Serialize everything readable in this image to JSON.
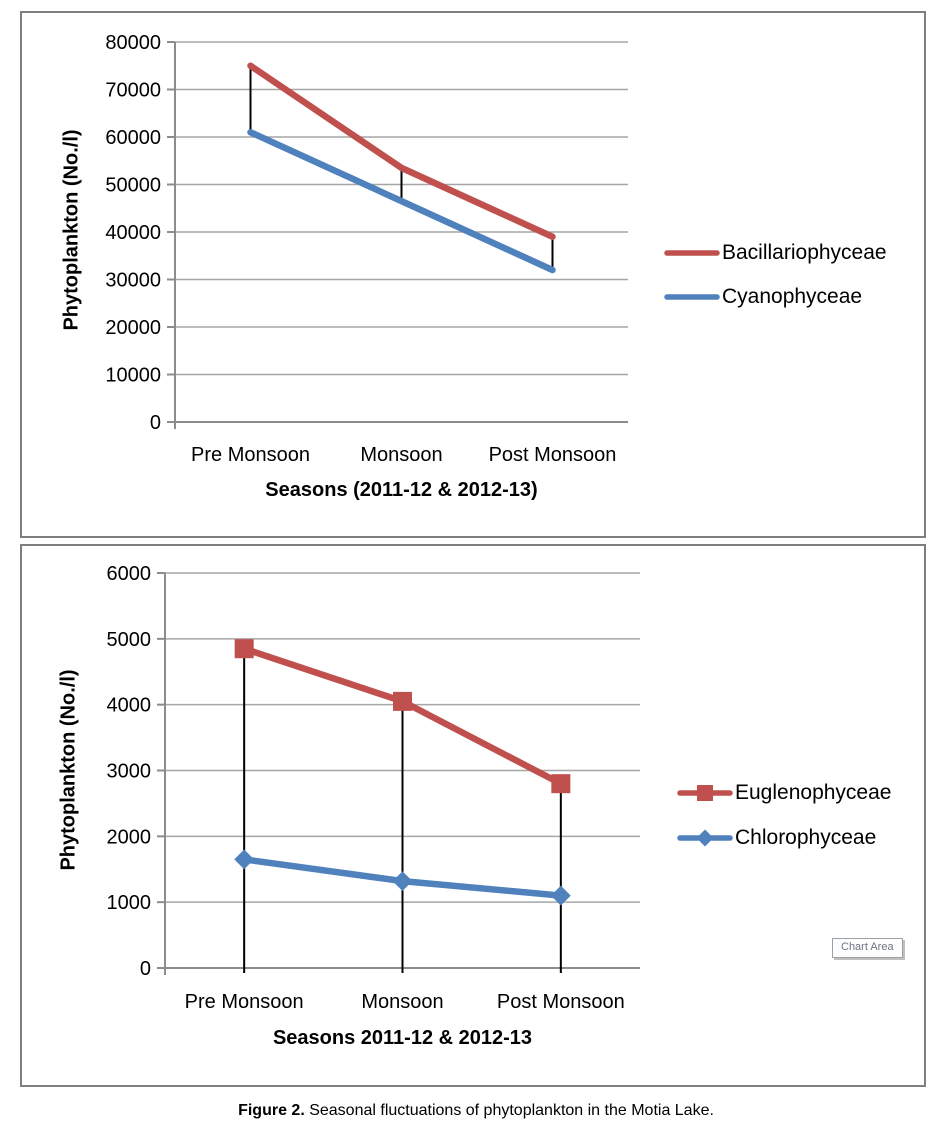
{
  "chart_data": [
    {
      "type": "line",
      "categories": [
        "Pre Monsoon",
        "Monsoon",
        "Post Monsoon"
      ],
      "series": [
        {
          "name": "Bacillariophyceae",
          "color": "#C0504D",
          "marker": "none",
          "values": [
            75000,
            53500,
            39000
          ]
        },
        {
          "name": "Cyanophyceae",
          "color": "#4F81BD",
          "marker": "none",
          "values": [
            61000,
            46500,
            32000
          ]
        }
      ],
      "xlabel": "Seasons (2011-12 & 2012-13)",
      "ylabel": "Phytoplankton (No./l)",
      "ylim": [
        0,
        80000
      ],
      "ytick_step": 10000,
      "grid": true,
      "legend_position": "right",
      "high_low_lines": true,
      "drop_lines": false
    },
    {
      "type": "line",
      "categories": [
        "Pre Monsoon",
        "Monsoon",
        "Post Monsoon"
      ],
      "series": [
        {
          "name": "Euglenophyceae",
          "color": "#C0504D",
          "marker": "square",
          "values": [
            4850,
            4050,
            2800
          ]
        },
        {
          "name": "Chlorophyceae",
          "color": "#4F81BD",
          "marker": "diamond",
          "values": [
            1650,
            1320,
            1100
          ]
        }
      ],
      "xlabel": "Seasons 2011-12 & 2012-13",
      "ylabel": "Phytoplankton (No./l)",
      "ylim": [
        0,
        6000
      ],
      "ytick_step": 1000,
      "grid": true,
      "legend_position": "right",
      "high_low_lines": false,
      "drop_lines": true,
      "tooltip": "Chart Area"
    }
  ],
  "caption": {
    "label": "Figure 2.",
    "text": " Seasonal fluctuations of phytoplankton in the Motia Lake."
  },
  "colors": {
    "series_red": "#C0504D",
    "series_blue": "#4F81BD",
    "gridline": "#A6A6A6",
    "axis": "#8C8C8C",
    "panel_border": "#7F7F7F",
    "hilo_line": "#000000"
  }
}
